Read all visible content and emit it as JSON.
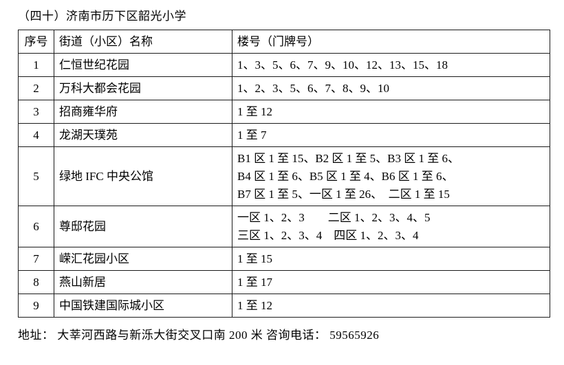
{
  "title": "（四十）济南市历下区韶光小学",
  "table": {
    "headers": [
      "序号",
      "街道（小区）名称",
      "楼号（门牌号）"
    ],
    "rows": [
      {
        "no": "1",
        "name": "仁恒世纪花园",
        "buildings": "1、3、5、6、7、9、10、12、13、15、18"
      },
      {
        "no": "2",
        "name": "万科大都会花园",
        "buildings": "1、2、3、5、6、7、8、9、10"
      },
      {
        "no": "3",
        "name": "招商雍华府",
        "buildings": "1 至 12"
      },
      {
        "no": "4",
        "name": "龙湖天璞苑",
        "buildings": "1 至 7"
      },
      {
        "no": "5",
        "name": "绿地 IFC 中央公馆",
        "buildings": "B1 区 1 至 15、B2 区 1 至 5、B3 区 1 至 6、\nB4 区 1 至 6、B5 区 1 至 4、B6 区 1 至 6、\nB7 区 1 至 5、一区 1 至 26、  二区 1 至 15"
      },
      {
        "no": "6",
        "name": "尊邸花园",
        "buildings": "一区 1、2、3　　二区 1、2、3、4、5\n三区 1、2、3、4　四区 1、2、3、4"
      },
      {
        "no": "7",
        "name": "嵘汇花园小区",
        "buildings": "1 至 15"
      },
      {
        "no": "8",
        "name": "燕山新居",
        "buildings": "1 至 17"
      },
      {
        "no": "9",
        "name": "中国铁建国际城小区",
        "buildings": "1 至 12"
      }
    ]
  },
  "footer": "地址： 大莘河西路与新泺大街交叉口南 200 米  咨询电话： 59565926"
}
